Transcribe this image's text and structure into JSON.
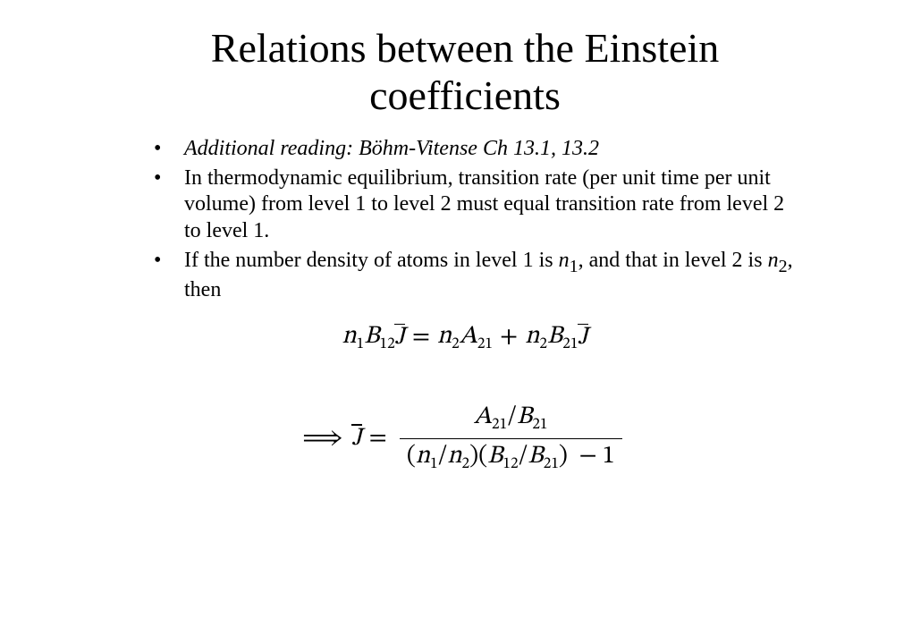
{
  "title": "Relations between the Einstein coefficients",
  "bullets": [
    {
      "html": "Additional reading: Böhm-Vitense Ch 13.1, 13.2",
      "italic": true
    },
    {
      "html": "In thermodynamic equilibrium, transition rate (per unit  time per unit volume) from level 1 to level 2 must equal transition rate from level 2 to level 1.",
      "italic": false
    },
    {
      "html": "If the number density of atoms in level 1 is <i>n</i><sub>1</sub>, and that in  level 2 is <i>n</i><sub>2</sub>, then",
      "italic": false
    }
  ],
  "eq1": {
    "left": {
      "n": "n",
      "nSub": "1",
      "B": "B",
      "BSub": "12",
      "J": "J"
    },
    "rightA": {
      "n": "n",
      "nSub": "2",
      "A": "A",
      "ASub": "21"
    },
    "rightB": {
      "n": "n",
      "nSub": "2",
      "B": "B",
      "BSub": "21",
      "J": "J"
    }
  },
  "eq2": {
    "imply": "⟹",
    "J": "J",
    "num": {
      "A": "A",
      "ASub": "21",
      "slash": "/",
      "B": "B",
      "BSub": "21"
    },
    "den": {
      "lpar": "(",
      "n1": "n",
      "n1Sub": "1",
      "slash1": "/",
      "n2": "n",
      "n2Sub": "2",
      "rpar": ")",
      "lpar2": "(",
      "B12": "B",
      "B12Sub": "12",
      "slash2": "/",
      "B21": "B",
      "B21Sub": "21",
      "rpar2": ")",
      "minus": "−",
      "one": "1"
    }
  },
  "style": {
    "title_fontsize": 46,
    "body_fontsize": 24,
    "eq_fontsize": 28,
    "text_color": "#000000",
    "background_color": "#ffffff",
    "font_family": "Times New Roman"
  }
}
